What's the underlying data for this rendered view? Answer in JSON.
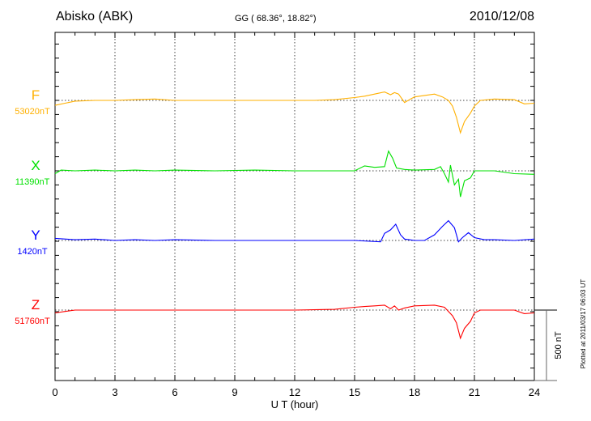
{
  "header": {
    "station": "Abisko (ABK)",
    "coords": "GG ( 68.36°,  18.82°)",
    "date": "2010/12/08"
  },
  "plotted_note": "Plotted at 2011/03/17 06:03 UT",
  "chart_data": {
    "type": "line",
    "title": "Abisko (ABK)",
    "xlabel": "U T (hour)",
    "xlim": [
      0,
      24
    ],
    "xticks": [
      "0",
      "3",
      "6",
      "9",
      "12",
      "15",
      "18",
      "21",
      "24"
    ],
    "grid": "dotted vertical every 3 hours; dotted baselines per component",
    "units_note": "values are deviations from baseline in nT",
    "scale_bar": {
      "label": "500 nT",
      "value": 500
    },
    "tick_step_nT": 100,
    "series": [
      {
        "name": "F",
        "baseline_label": "53020nT",
        "color": "#ffb000",
        "points": [
          [
            0,
            -35
          ],
          [
            0.5,
            -20
          ],
          [
            1,
            -5
          ],
          [
            2,
            0
          ],
          [
            3,
            0
          ],
          [
            4,
            5
          ],
          [
            5,
            10
          ],
          [
            6,
            0
          ],
          [
            8,
            0
          ],
          [
            10,
            0
          ],
          [
            12,
            0
          ],
          [
            13,
            0
          ],
          [
            14,
            5
          ],
          [
            15,
            20
          ],
          [
            15.5,
            30
          ],
          [
            16,
            45
          ],
          [
            16.5,
            60
          ],
          [
            16.8,
            40
          ],
          [
            17,
            55
          ],
          [
            17.2,
            45
          ],
          [
            17.5,
            -15
          ],
          [
            17.8,
            10
          ],
          [
            18,
            25
          ],
          [
            18.5,
            35
          ],
          [
            19,
            45
          ],
          [
            19.4,
            25
          ],
          [
            19.7,
            0
          ],
          [
            19.9,
            -40
          ],
          [
            20.1,
            -120
          ],
          [
            20.3,
            -230
          ],
          [
            20.5,
            -150
          ],
          [
            20.8,
            -90
          ],
          [
            21,
            -40
          ],
          [
            21.3,
            0
          ],
          [
            22,
            10
          ],
          [
            23,
            5
          ],
          [
            23.5,
            -25
          ],
          [
            24,
            -20
          ]
        ]
      },
      {
        "name": "X",
        "baseline_label": "11390nT",
        "color": "#00e000",
        "points": [
          [
            0,
            -20
          ],
          [
            0.3,
            5
          ],
          [
            1,
            0
          ],
          [
            2,
            5
          ],
          [
            3,
            0
          ],
          [
            4,
            5
          ],
          [
            5,
            0
          ],
          [
            6,
            5
          ],
          [
            8,
            0
          ],
          [
            10,
            5
          ],
          [
            12,
            0
          ],
          [
            14,
            0
          ],
          [
            15,
            0
          ],
          [
            15.5,
            35
          ],
          [
            16,
            25
          ],
          [
            16.5,
            30
          ],
          [
            16.7,
            140
          ],
          [
            16.9,
            90
          ],
          [
            17.1,
            20
          ],
          [
            17.5,
            10
          ],
          [
            18,
            5
          ],
          [
            19,
            10
          ],
          [
            19.3,
            30
          ],
          [
            19.5,
            -20
          ],
          [
            19.7,
            -80
          ],
          [
            19.8,
            40
          ],
          [
            20,
            -100
          ],
          [
            20.2,
            -60
          ],
          [
            20.3,
            -185
          ],
          [
            20.5,
            -70
          ],
          [
            20.8,
            -50
          ],
          [
            21,
            0
          ],
          [
            22,
            0
          ],
          [
            23,
            -20
          ],
          [
            24,
            -25
          ]
        ]
      },
      {
        "name": "Y",
        "baseline_label": "1420nT",
        "color": "#0000ff",
        "points": [
          [
            0,
            15
          ],
          [
            1,
            5
          ],
          [
            2,
            10
          ],
          [
            3,
            0
          ],
          [
            4,
            5
          ],
          [
            5,
            0
          ],
          [
            6,
            5
          ],
          [
            8,
            0
          ],
          [
            10,
            0
          ],
          [
            12,
            0
          ],
          [
            14,
            0
          ],
          [
            15,
            0
          ],
          [
            16.3,
            -10
          ],
          [
            16.5,
            50
          ],
          [
            16.8,
            75
          ],
          [
            17.06,
            115
          ],
          [
            17.3,
            40
          ],
          [
            17.5,
            10
          ],
          [
            18,
            0
          ],
          [
            18.5,
            0
          ],
          [
            19,
            40
          ],
          [
            19.4,
            100
          ],
          [
            19.7,
            140
          ],
          [
            20,
            90
          ],
          [
            20.2,
            -10
          ],
          [
            20.4,
            20
          ],
          [
            20.7,
            55
          ],
          [
            21,
            20
          ],
          [
            21.5,
            5
          ],
          [
            22,
            5
          ],
          [
            23,
            0
          ],
          [
            24,
            10
          ]
        ]
      },
      {
        "name": "Z",
        "baseline_label": "51760nT",
        "color": "#ff0000",
        "points": [
          [
            0,
            -20
          ],
          [
            0.5,
            -10
          ],
          [
            1,
            0
          ],
          [
            3,
            0
          ],
          [
            6,
            0
          ],
          [
            9,
            0
          ],
          [
            12,
            0
          ],
          [
            14,
            5
          ],
          [
            15,
            20
          ],
          [
            15.5,
            25
          ],
          [
            16,
            30
          ],
          [
            16.5,
            35
          ],
          [
            16.8,
            10
          ],
          [
            17,
            30
          ],
          [
            17.2,
            0
          ],
          [
            17.5,
            15
          ],
          [
            18,
            30
          ],
          [
            19,
            35
          ],
          [
            19.5,
            20
          ],
          [
            19.9,
            -40
          ],
          [
            20.1,
            -90
          ],
          [
            20.3,
            -200
          ],
          [
            20.5,
            -130
          ],
          [
            20.8,
            -80
          ],
          [
            21,
            -20
          ],
          [
            21.3,
            0
          ],
          [
            23,
            0
          ],
          [
            23.5,
            -25
          ],
          [
            24,
            -20
          ]
        ]
      }
    ]
  }
}
